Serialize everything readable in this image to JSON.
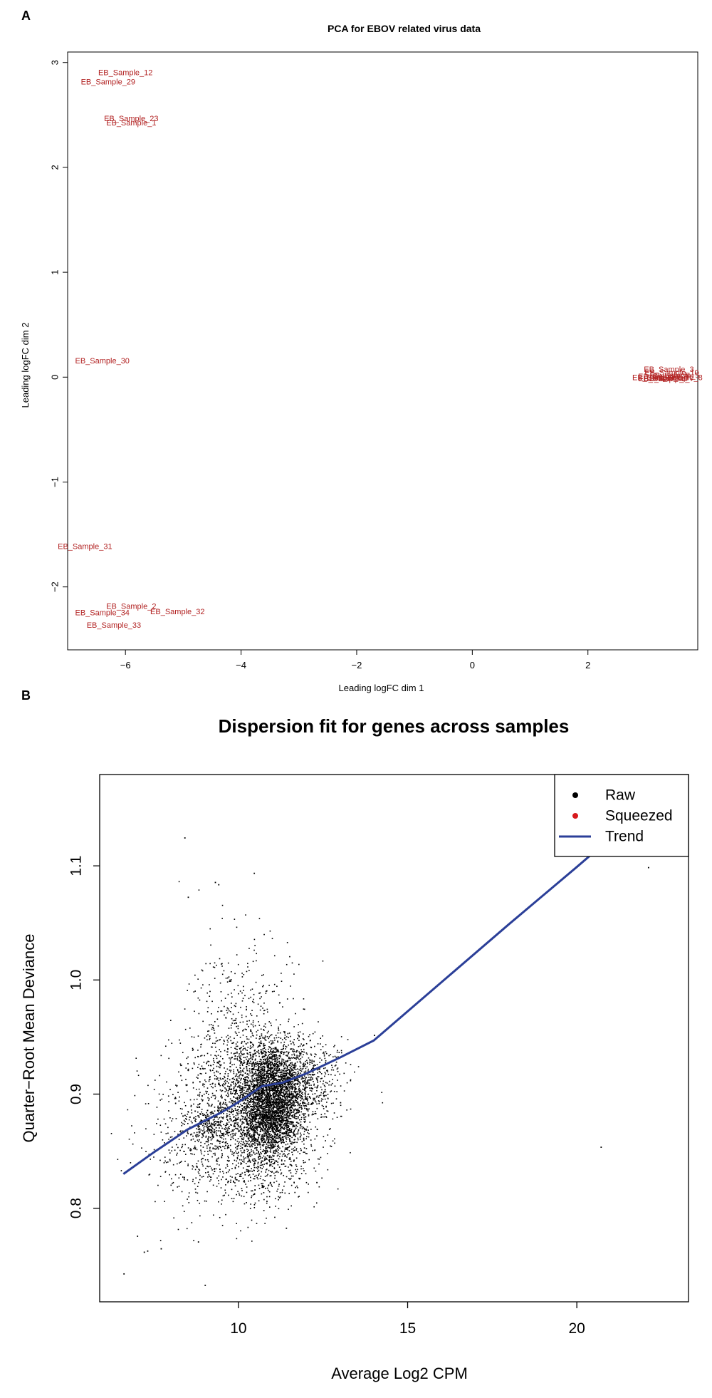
{
  "panels": {
    "a": {
      "letter": "A"
    },
    "b": {
      "letter": "B"
    }
  },
  "chart_data": [
    {
      "type": "scatter",
      "title": "PCA for EBOV related virus data",
      "xlabel": "Leading logFC dim 1",
      "ylabel": "Leading logFC dim 2",
      "xlim": [
        -7.0,
        3.9
      ],
      "ylim": [
        -2.6,
        3.1
      ],
      "xticks": [
        -6,
        -4,
        -2,
        0,
        2
      ],
      "yticks": [
        -2,
        -1,
        0,
        1,
        2,
        3
      ],
      "label_color": "#b22222",
      "points": [
        {
          "label": "EB_Sample_12",
          "x": -6.0,
          "y": 2.9
        },
        {
          "label": "EB_Sample_29",
          "x": -6.3,
          "y": 2.81
        },
        {
          "label": "EB_Sample_23",
          "x": -5.9,
          "y": 2.46
        },
        {
          "label": "EB_Sample_1",
          "x": -5.9,
          "y": 2.42
        },
        {
          "label": "EB_Sample_30",
          "x": -6.4,
          "y": 0.15
        },
        {
          "label": "EB_Sample_31",
          "x": -6.7,
          "y": -1.62
        },
        {
          "label": "EB_Sample_2",
          "x": -5.9,
          "y": -2.19
        },
        {
          "label": "EB_Sample_34",
          "x": -6.4,
          "y": -2.25
        },
        {
          "label": "EB_Sample_32",
          "x": -5.1,
          "y": -2.24
        },
        {
          "label": "EB_Sample_33",
          "x": -6.2,
          "y": -2.37
        },
        {
          "label": "EB_Sample_3",
          "x": 3.4,
          "y": 0.07
        },
        {
          "label": "EB_Sample_10",
          "x": 3.45,
          "y": 0.04
        },
        {
          "label": "EB_Sample_4",
          "x": 3.3,
          "y": 0.0
        },
        {
          "label": "EB_Sample_5",
          "x": 3.5,
          "y": 0.01
        },
        {
          "label": "EB_Sample_6",
          "x": 3.2,
          "y": -0.01
        },
        {
          "label": "EB_Sample_7",
          "x": 3.4,
          "y": -0.02
        },
        {
          "label": "EB_Sample_8",
          "x": 3.55,
          "y": -0.01
        },
        {
          "label": "EB_Sample_9",
          "x": 3.3,
          "y": -0.02
        }
      ]
    },
    {
      "type": "scatter",
      "title": "Dispersion fit for genes across samples",
      "xlabel": "Average Log2 CPM",
      "ylabel": "Quarter−Root Mean Deviance",
      "xlim": [
        5.9,
        23.3
      ],
      "ylim": [
        0.718,
        1.18
      ],
      "xticks": [
        10,
        15,
        20
      ],
      "yticks": [
        0.8,
        0.9,
        1.0,
        1.1
      ],
      "legend_position": "top-right",
      "legend": [
        {
          "label": "Raw",
          "symbol": "dot",
          "color": "#000000"
        },
        {
          "label": "Squeezed",
          "symbol": "dot",
          "color": "#d7191c"
        },
        {
          "label": "Trend",
          "symbol": "line",
          "color": "#2b3f98"
        }
      ],
      "trend": {
        "x": [
          6.6,
          7.5,
          8.5,
          9.5,
          10.0,
          10.7,
          11.3,
          12.0,
          13.0,
          14.0,
          16.0,
          18.0,
          20.0,
          22.0,
          22.7
        ],
        "y": [
          0.83,
          0.849,
          0.869,
          0.884,
          0.893,
          0.907,
          0.91,
          0.918,
          0.932,
          0.947,
          0.998,
          1.049,
          1.099,
          1.15,
          1.169
        ]
      },
      "raw_outliers": [
        {
          "x": 8.4,
          "y": 1.125
        },
        {
          "x": 8.5,
          "y": 1.073
        },
        {
          "x": 9.3,
          "y": 1.086
        },
        {
          "x": 9.4,
          "y": 1.084
        },
        {
          "x": 10.45,
          "y": 1.094
        },
        {
          "x": 20.7,
          "y": 0.854
        },
        {
          "x": 22.1,
          "y": 1.099
        },
        {
          "x": 22.6,
          "y": 1.111
        },
        {
          "x": 6.6,
          "y": 0.743
        },
        {
          "x": 7.2,
          "y": 0.762
        },
        {
          "x": 7.3,
          "y": 0.763
        },
        {
          "x": 7.0,
          "y": 0.776
        },
        {
          "x": 7.7,
          "y": 0.765
        },
        {
          "x": 9.0,
          "y": 0.733
        },
        {
          "x": 8.8,
          "y": 0.771
        },
        {
          "x": 11.4,
          "y": 0.783
        },
        {
          "x": 13.0,
          "y": 0.893
        },
        {
          "x": 12.3,
          "y": 0.823
        },
        {
          "x": 14.0,
          "y": 0.952
        }
      ],
      "raw_clusters": [
        {
          "cx": 11.0,
          "cy": 0.905,
          "sx": 0.55,
          "sy": 0.021,
          "n": 2500
        },
        {
          "cx": 10.9,
          "cy": 0.873,
          "sx": 0.45,
          "sy": 0.017,
          "n": 1100
        },
        {
          "cx": 9.2,
          "cy": 0.873,
          "sx": 0.3,
          "sy": 0.006,
          "n": 150
        },
        {
          "cx": 10.3,
          "cy": 0.89,
          "sx": 1.1,
          "sy": 0.035,
          "n": 1700
        },
        {
          "cx": 10.0,
          "cy": 0.975,
          "sx": 0.75,
          "sy": 0.035,
          "n": 260
        },
        {
          "cx": 8.8,
          "cy": 0.855,
          "sx": 0.85,
          "sy": 0.03,
          "n": 320
        },
        {
          "cx": 12.3,
          "cy": 0.92,
          "sx": 0.45,
          "sy": 0.013,
          "n": 180
        },
        {
          "cx": 10.8,
          "cy": 0.84,
          "sx": 0.6,
          "sy": 0.022,
          "n": 260
        }
      ]
    }
  ]
}
